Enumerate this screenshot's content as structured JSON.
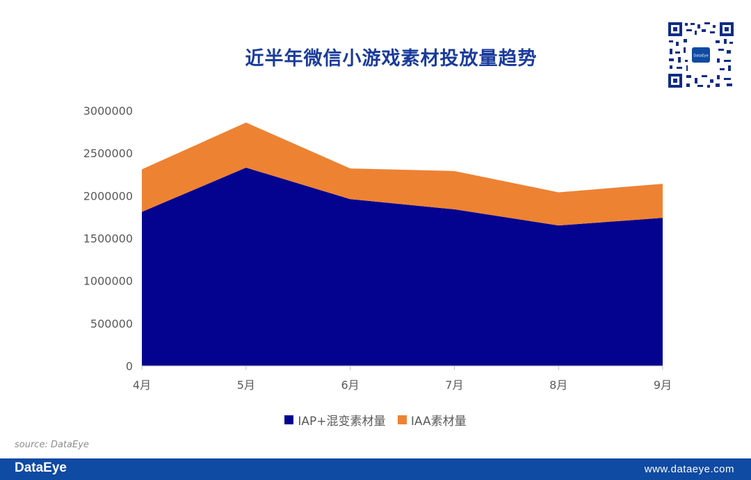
{
  "title": "近半年微信小游戏素材投放量趋势",
  "qr": {
    "label": "DataEye"
  },
  "chart_data": {
    "type": "area",
    "stacked": true,
    "title": "近半年微信小游戏素材投放量趋势",
    "categories": [
      "4月",
      "5月",
      "6月",
      "7月",
      "8月",
      "9月"
    ],
    "yticks": [
      "0",
      "500000",
      "1000000",
      "1500000",
      "2000000",
      "2500000",
      "3000000"
    ],
    "ylim": [
      0,
      3000000
    ],
    "series": [
      {
        "name": "IAP+混变素材量",
        "color": "#04038f",
        "values": [
          1810000,
          2330000,
          1960000,
          1840000,
          1650000,
          1740000
        ]
      },
      {
        "name": "IAA素材量",
        "color": "#ed8233",
        "values": [
          500000,
          530000,
          360000,
          450000,
          390000,
          400000
        ]
      }
    ],
    "legend_position": "bottom",
    "grid": false
  },
  "source": "source:  DataEye",
  "footer": {
    "brand": "DataEye",
    "url": "www.dataeye.com"
  }
}
